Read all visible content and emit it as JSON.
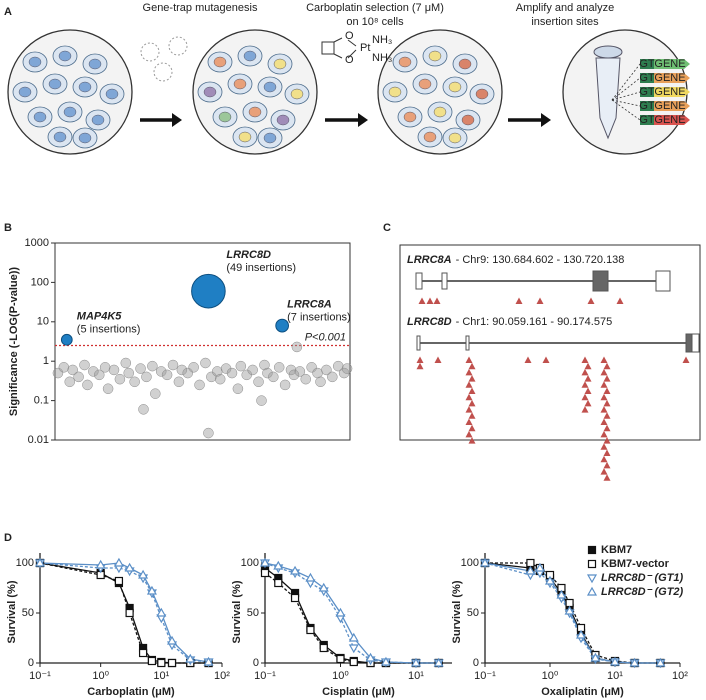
{
  "panel_a": {
    "panel": "A",
    "steps": [
      {
        "lines": [
          "Gene-trap mutagenesis"
        ]
      },
      {
        "lines": [
          "Carboplatin selection (7 μM)",
          "on 10⁸ cells"
        ]
      },
      {
        "lines": [
          "Amplify and analyze",
          "insertion sites"
        ]
      }
    ],
    "molecule_labels": [
      "O",
      "O",
      "Pt",
      "NH₃",
      "NH₃"
    ],
    "tube_labels": [
      [
        "GT",
        "GENE"
      ],
      [
        "GT",
        "GENE"
      ],
      [
        "GT",
        "GENE"
      ],
      [
        "GT",
        "GENE"
      ],
      [
        "GT",
        "GENE"
      ]
    ]
  },
  "panel_c": {
    "panel": "C",
    "genes": [
      {
        "name": "LRRC8A",
        "location": "- Chr9: 130.684.602 - 130.720.138"
      },
      {
        "name": "LRRC8D",
        "location": "- Chr1: 90.059.161 - 90.174.575"
      }
    ]
  },
  "chart_data": [
    {
      "type": "scatter",
      "panel": "B",
      "y_label": "Significance (-LOG(P-value))",
      "ylog": true,
      "xlim": [
        0,
        100
      ],
      "ylim": [
        0.01,
        1000
      ],
      "yticks": [
        0.01,
        0.1,
        1,
        10,
        100,
        1000
      ],
      "threshold": {
        "value": 2.5,
        "label": "P<0.001"
      },
      "series": [
        {
          "color": "#9a9a9a",
          "x": [
            1,
            3,
            5,
            6,
            8,
            10,
            11,
            13,
            15,
            17,
            18,
            20,
            22,
            24,
            25,
            27,
            29,
            31,
            33,
            34,
            36,
            38,
            40,
            42,
            43,
            45,
            47,
            49,
            51,
            53,
            55,
            56,
            58,
            60,
            62,
            63,
            65,
            67,
            69,
            71,
            72,
            74,
            76,
            78,
            80,
            81,
            83,
            85,
            87,
            89,
            90,
            92,
            94,
            96,
            98,
            99,
            52,
            82,
            30,
            70
          ],
          "values": [
            0.5,
            0.7,
            0.3,
            0.6,
            0.4,
            0.8,
            0.25,
            0.55,
            0.45,
            0.7,
            0.2,
            0.6,
            0.35,
            0.9,
            0.5,
            0.3,
            0.65,
            0.4,
            0.75,
            0.15,
            0.55,
            0.45,
            0.8,
            0.3,
            0.6,
            0.5,
            0.7,
            0.25,
            0.9,
            0.4,
            0.55,
            0.35,
            0.65,
            0.5,
            0.2,
            0.75,
            0.45,
            0.6,
            0.3,
            0.8,
            0.5,
            0.4,
            0.7,
            0.25,
            0.6,
            0.45,
            0.55,
            0.35,
            0.7,
            0.5,
            0.3,
            0.6,
            0.4,
            0.75,
            0.5,
            0.65,
            0.015,
            2.3,
            0.06,
            0.1
          ]
        },
        {
          "color": "#1f7fc4",
          "x": [
            4,
            52,
            77
          ],
          "values": [
            3.5,
            60,
            8
          ],
          "sizes": [
            5,
            49,
            7
          ],
          "labels": [
            "MAP4K5",
            "LRRC8D",
            "LRRC8A"
          ],
          "notes": [
            "(5 insertions)",
            "(49 insertions)",
            "(7 insertions)"
          ]
        }
      ]
    },
    {
      "type": "line",
      "panel": "D",
      "x_label": "Carboplatin (μM)",
      "y_label": "Survival (%)",
      "xlog": true,
      "xlim": [
        0.1,
        100
      ],
      "xticks": [
        {
          "value": 0.1,
          "label": "10⁻¹"
        },
        {
          "value": 1,
          "label": "10⁰"
        },
        {
          "value": 10,
          "label": "10¹"
        },
        {
          "value": 100,
          "label": "10²"
        }
      ],
      "ylim": [
        0,
        110
      ],
      "yticks": [
        0,
        50,
        100
      ],
      "x": [
        0.1,
        1,
        2,
        3,
        5,
        7,
        10,
        15,
        30,
        60
      ],
      "series": [
        {
          "color": "#111111",
          "marker": "square-filled",
          "values": [
            100,
            90,
            80,
            55,
            15,
            3,
            1,
            0,
            0,
            0
          ]
        },
        {
          "color": "#111111",
          "marker": "square-open",
          "values": [
            100,
            88,
            82,
            50,
            10,
            2,
            0,
            0,
            0,
            0
          ]
        },
        {
          "color": "#5b8fc7",
          "marker": "triangle-down",
          "values": [
            100,
            95,
            95,
            92,
            85,
            70,
            45,
            18,
            3,
            1
          ]
        },
        {
          "color": "#5b8fc7",
          "marker": "triangle-up",
          "values": [
            100,
            98,
            100,
            95,
            88,
            72,
            50,
            22,
            4,
            1
          ]
        }
      ]
    },
    {
      "type": "line",
      "x_label": "Cisplatin (μM)",
      "y_label": "Survival (%)",
      "xlog": true,
      "xlim": [
        0.1,
        30
      ],
      "xticks": [
        {
          "value": 0.1,
          "label": "10⁻¹"
        },
        {
          "value": 1,
          "label": "10⁰"
        },
        {
          "value": 10,
          "label": "10¹"
        }
      ],
      "ylim": [
        0,
        110
      ],
      "yticks": [
        0,
        50,
        100
      ],
      "x": [
        0.1,
        0.15,
        0.25,
        0.4,
        0.6,
        1,
        1.5,
        2.5,
        4,
        10,
        20
      ],
      "series": [
        {
          "color": "#111111",
          "marker": "square-filled",
          "values": [
            95,
            85,
            70,
            35,
            18,
            5,
            2,
            0,
            0,
            0,
            0
          ]
        },
        {
          "color": "#111111",
          "marker": "square-open",
          "values": [
            90,
            80,
            65,
            33,
            15,
            4,
            1,
            0,
            0,
            0,
            0
          ]
        },
        {
          "color": "#5b8fc7",
          "marker": "triangle-down",
          "values": [
            100,
            95,
            90,
            80,
            72,
            45,
            15,
            3,
            1,
            0,
            0
          ]
        },
        {
          "color": "#5b8fc7",
          "marker": "triangle-up",
          "values": [
            100,
            97,
            92,
            85,
            75,
            50,
            25,
            5,
            1,
            0,
            0
          ]
        }
      ]
    },
    {
      "type": "line",
      "x_label": "Oxaliplatin (μM)",
      "y_label": "Survival (%)",
      "xlog": true,
      "legend": "upper right",
      "xlim": [
        0.1,
        100
      ],
      "xticks": [
        {
          "value": 0.1,
          "label": "10⁻¹"
        },
        {
          "value": 1,
          "label": "10⁰"
        },
        {
          "value": 10,
          "label": "10¹"
        },
        {
          "value": 100,
          "label": "10²"
        }
      ],
      "ylim": [
        0,
        110
      ],
      "yticks": [
        0,
        50,
        100
      ],
      "x": [
        0.1,
        0.5,
        0.7,
        1,
        1.5,
        2,
        3,
        5,
        10,
        20,
        50
      ],
      "series": [
        {
          "name": "KBM7",
          "color": "#111111",
          "marker": "square-filled",
          "values": [
            100,
            95,
            92,
            85,
            70,
            55,
            30,
            5,
            1,
            0,
            0
          ]
        },
        {
          "name": "KBM7-vector",
          "color": "#111111",
          "marker": "square-open",
          "values": [
            100,
            100,
            95,
            88,
            75,
            60,
            35,
            8,
            2,
            0,
            0
          ]
        },
        {
          "name": "LRRC8D⁻ (GT1)",
          "color": "#5b8fc7",
          "marker": "triangle-down",
          "values": [
            100,
            88,
            90,
            80,
            65,
            50,
            25,
            4,
            1,
            0,
            0
          ]
        },
        {
          "name": "LRRC8D⁻ (GT2)",
          "color": "#5b8fc7",
          "marker": "triangle-up",
          "values": [
            100,
            92,
            95,
            82,
            68,
            52,
            28,
            5,
            1,
            0,
            0
          ]
        }
      ]
    }
  ]
}
